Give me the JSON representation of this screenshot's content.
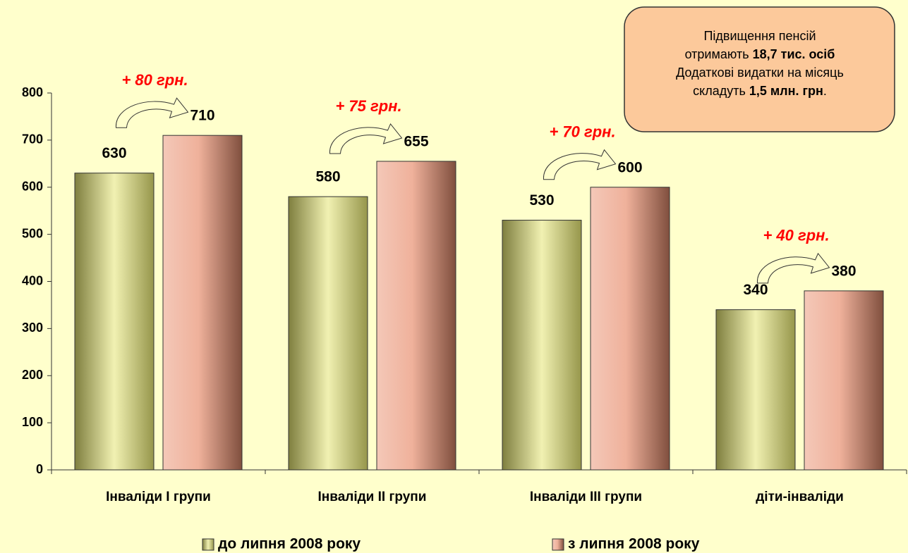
{
  "chart_data": {
    "type": "bar",
    "categories": [
      "Інваліди I групи",
      "Інваліди II групи",
      "Інваліди III групи",
      "діти-інваліди"
    ],
    "series": [
      {
        "name": "до липня 2008 року",
        "color": "#e6e673",
        "values": [
          630,
          580,
          530,
          340
        ]
      },
      {
        "name": "з липня 2008 року",
        "color": "#e89070",
        "values": [
          710,
          655,
          600,
          380
        ]
      }
    ],
    "ylim": [
      0,
      800
    ],
    "yticks": [
      0,
      100,
      200,
      300,
      400,
      500,
      600,
      700,
      800
    ],
    "annotations": [
      "+ 80 грн.",
      "+ 75 грн.",
      "+ 70 грн.",
      "+ 40 грн."
    ],
    "note": [
      [
        {
          "text": "Підвищення пенсій",
          "bold": false
        }
      ],
      [
        {
          "text": "отримають ",
          "bold": false
        },
        {
          "text": "18,7  тис. осіб",
          "bold": true
        }
      ],
      [
        {
          "text": "Додаткові видатки на місяць",
          "bold": false
        }
      ],
      [
        {
          "text": "складуть ",
          "bold": false
        },
        {
          "text": "1,5 млн. грн",
          "bold": true
        },
        {
          "text": ".",
          "bold": false
        }
      ]
    ],
    "legend": "bottom"
  }
}
